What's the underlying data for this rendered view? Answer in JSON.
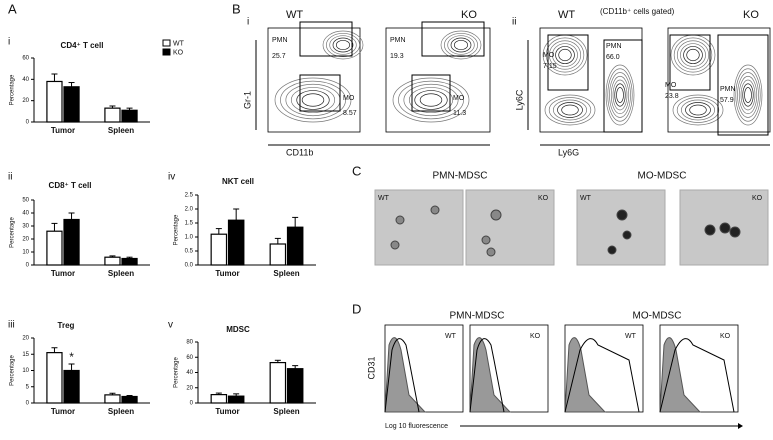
{
  "chart_data": [
    {
      "type": "bar",
      "label": "i",
      "title": "CD4⁺ T cell",
      "ylabel": "Percentage",
      "categories": [
        "Tumor",
        "Spleen"
      ],
      "series": [
        {
          "name": "WT",
          "color": "#ffffff",
          "values": [
            38,
            13
          ],
          "errors": [
            7,
            2
          ]
        },
        {
          "name": "KO",
          "color": "#000000",
          "values": [
            33,
            11
          ],
          "errors": [
            4,
            2
          ]
        }
      ],
      "ylim": [
        0,
        60
      ],
      "yticks": [
        0,
        20,
        40,
        60
      ]
    },
    {
      "type": "bar",
      "label": "ii",
      "title": "CD8⁺ T cell",
      "ylabel": "Percentage",
      "categories": [
        "Tumor",
        "Spleen"
      ],
      "series": [
        {
          "color": "#ffffff",
          "values": [
            26,
            6
          ],
          "errors": [
            6,
            1
          ]
        },
        {
          "color": "#000000",
          "values": [
            35,
            5
          ],
          "errors": [
            5,
            1
          ]
        }
      ],
      "ylim": [
        0,
        50
      ],
      "yticks": [
        0,
        10,
        20,
        30,
        40,
        50
      ]
    },
    {
      "type": "bar",
      "label": "iv",
      "title": "NKT cell",
      "ylabel": "Percentage",
      "categories": [
        "Tumor",
        "Spleen"
      ],
      "series": [
        {
          "color": "#ffffff",
          "values": [
            1.1,
            0.75
          ],
          "errors": [
            0.2,
            0.2
          ]
        },
        {
          "color": "#000000",
          "values": [
            1.6,
            1.35
          ],
          "errors": [
            0.4,
            0.35
          ]
        }
      ],
      "ylim": [
        0,
        2.5
      ],
      "yticks": [
        {
          "value": 0,
          "label": "0.0"
        },
        0.5,
        {
          "value": 1,
          "label": "1.0"
        },
        1.5,
        {
          "value": 2,
          "label": "2.0"
        },
        2.5
      ]
    },
    {
      "type": "bar",
      "label": "iii",
      "title": "Treg",
      "ylabel": "Percentage",
      "categories": [
        "Tumor",
        "Spleen"
      ],
      "annotation": "*",
      "series": [
        {
          "color": "#ffffff",
          "values": [
            15.5,
            2.5
          ],
          "errors": [
            1.5,
            0.5
          ]
        },
        {
          "color": "#000000",
          "values": [
            10,
            2
          ],
          "errors": [
            2,
            0.3
          ]
        }
      ],
      "ylim": [
        0,
        20
      ],
      "yticks": [
        0,
        5,
        10,
        15,
        20
      ]
    },
    {
      "type": "bar",
      "label": "v",
      "title": "MDSC",
      "ylabel": "Percentage",
      "categories": [
        "Tumor",
        "Spleen"
      ],
      "series": [
        {
          "color": "#ffffff",
          "values": [
            11,
            53
          ],
          "errors": [
            2,
            3
          ]
        },
        {
          "color": "#000000",
          "values": [
            9,
            45
          ],
          "errors": [
            3,
            4
          ]
        }
      ],
      "ylim": [
        0,
        80
      ],
      "yticks": [
        0,
        20,
        40,
        60,
        80
      ]
    }
  ],
  "figure": {
    "panel_a": {
      "label": "A"
    },
    "panel_b": {
      "label": "B",
      "i": {
        "label": "i",
        "xlabel": "CD11b",
        "ylabel": "Gr-1",
        "plots": [
          {
            "title": "WT",
            "gates": [
              {
                "name": "PMN",
                "value": 25.7
              },
              {
                "name": "MO",
                "value": 8.57
              }
            ]
          },
          {
            "title": "KO",
            "gates": [
              {
                "name": "PMN",
                "value": 19.3
              },
              {
                "name": "MO",
                "value": 11.3
              }
            ]
          }
        ]
      },
      "ii": {
        "label": "ii",
        "note": "(CD11b⁺ cells gated)",
        "xlabel": "Ly6G",
        "ylabel": "Ly6C",
        "plots": [
          {
            "title": "WT",
            "gates": [
              {
                "name": "MO",
                "value": 7.15
              },
              {
                "name": "PMN",
                "value": "66.0"
              }
            ]
          },
          {
            "title": "KO",
            "gates": [
              {
                "name": "MO",
                "value": 23.8
              },
              {
                "name": "PMN",
                "value": 57.9
              }
            ]
          }
        ]
      }
    },
    "panel_c": {
      "label": "C",
      "groups": [
        {
          "title": "PMN-MDSC",
          "images": [
            "WT",
            "KO"
          ]
        },
        {
          "title": "MO-MDSC",
          "images": [
            "WT",
            "KO"
          ]
        }
      ]
    },
    "panel_d": {
      "label": "D",
      "ylabel": "CD31",
      "xlabel": "Log 10 fluorescence",
      "groups": [
        {
          "title": "PMN-MDSC",
          "plots": [
            "WT",
            "KO"
          ]
        },
        {
          "title": "MO-MDSC",
          "plots": [
            "WT",
            "KO"
          ]
        }
      ]
    }
  }
}
